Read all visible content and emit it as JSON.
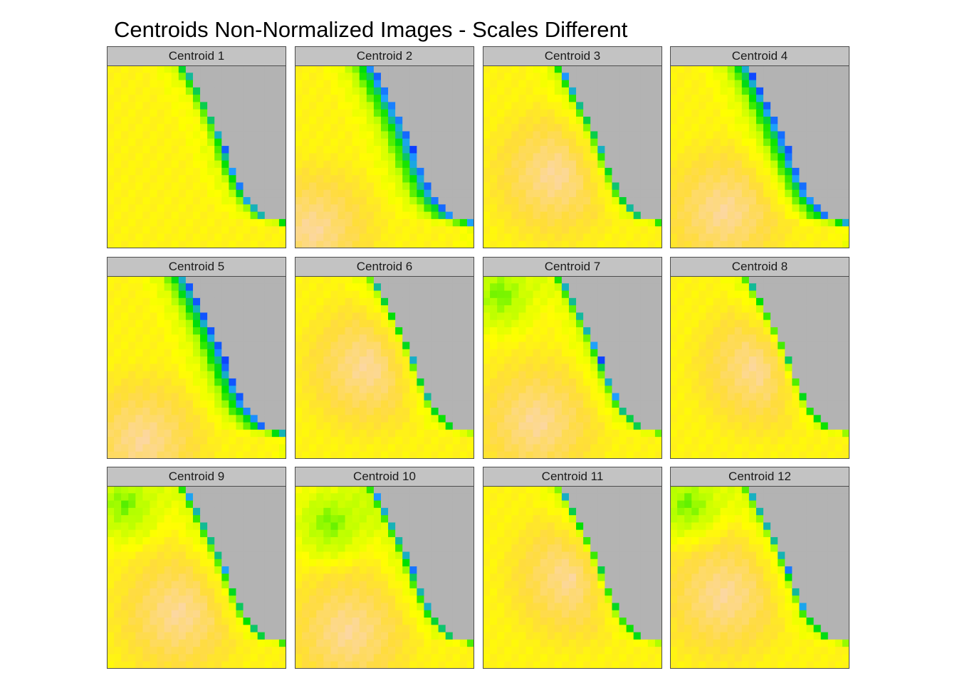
{
  "title": "Centroids Non-Normalized Images - Scales Different",
  "chart_data": {
    "type": "heatmap",
    "title": "Centroids Non-Normalized Images - Scales Different",
    "facets": [
      {
        "label": "Centroid 1"
      },
      {
        "label": "Centroid 2"
      },
      {
        "label": "Centroid 3"
      },
      {
        "label": "Centroid 4"
      },
      {
        "label": "Centroid 5"
      },
      {
        "label": "Centroid 6"
      },
      {
        "label": "Centroid 7"
      },
      {
        "label": "Centroid 8"
      },
      {
        "label": "Centroid 9"
      },
      {
        "label": "Centroid 10"
      },
      {
        "label": "Centroid 11"
      },
      {
        "label": "Centroid 12"
      }
    ],
    "grid_cells": [
      25,
      25
    ],
    "missing_color": "#b3b3b3",
    "colors": [
      "#0000ff",
      "#1ea0ff",
      "#00e000",
      "#b4ff00",
      "#ffff00",
      "#ffdc3c",
      "#fcd7a0"
    ],
    "profiles": [
      {
        "band": 1.6,
        "hot": [
          0.8,
          0.1
        ],
        "cool": null
      },
      {
        "band": 3.2,
        "hot": [
          0.1,
          0.9
        ],
        "cool": null
      },
      {
        "band": 1.2,
        "hot": [
          0.4,
          0.6
        ],
        "cool": null
      },
      {
        "band": 3.0,
        "hot": [
          0.3,
          0.8
        ],
        "cool": null
      },
      {
        "band": 3.0,
        "hot": [
          0.2,
          0.9
        ],
        "cool": null
      },
      {
        "band": 0.9,
        "hot": [
          0.4,
          0.5
        ],
        "cool": null
      },
      {
        "band": 1.1,
        "hot": [
          0.3,
          0.8
        ],
        "cool": [
          0.1,
          0.1
        ]
      },
      {
        "band": 0.9,
        "hot": [
          0.5,
          0.5
        ],
        "cool": null
      },
      {
        "band": 1.1,
        "hot": [
          0.4,
          0.7
        ],
        "cool": [
          0.1,
          0.1
        ]
      },
      {
        "band": 1.1,
        "hot": [
          0.3,
          0.8
        ],
        "cool": [
          0.2,
          0.2
        ]
      },
      {
        "band": 0.9,
        "hot": [
          0.5,
          0.5
        ],
        "cool": null
      },
      {
        "band": 1.0,
        "hot": [
          0.3,
          0.6
        ],
        "cool": [
          0.1,
          0.1
        ]
      }
    ]
  }
}
